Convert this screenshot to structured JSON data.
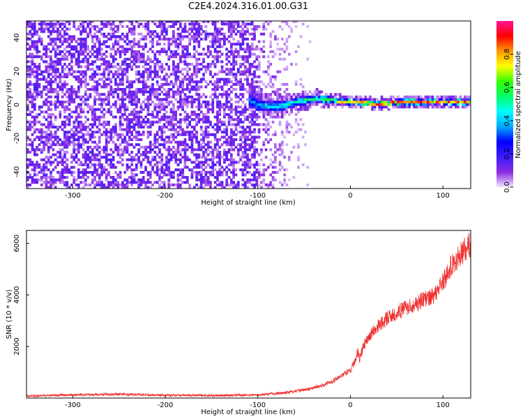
{
  "title": "C2E4.2024.316.01.00.G31",
  "chart_data": [
    {
      "type": "heatmap",
      "xlabel": "Height of straight line (km)",
      "ylabel": "Frequency (Hz)",
      "xlim": [
        -350,
        130
      ],
      "ylim": [
        -50,
        50
      ],
      "xticks": [
        -300,
        -200,
        -100,
        0,
        100
      ],
      "yticks": [
        -40,
        -20,
        0,
        20,
        40
      ],
      "colorbar": {
        "label": "Normalized spectral amplitude",
        "range": [
          0,
          1
        ],
        "ticks": [
          0.0,
          0.2,
          0.4,
          0.6,
          0.8
        ],
        "colormap": [
          "#f2e6ff",
          "#8a2be2",
          "#3c1cff",
          "#0000ff",
          "#00a8ff",
          "#00ffff",
          "#00ff66",
          "#33ff00",
          "#ffff00",
          "#ff9900",
          "#ff0000",
          "#ff1493"
        ]
      },
      "noise_region": {
        "x_range": [
          -350,
          -100
        ],
        "freq_range": [
          -50,
          50
        ],
        "typical_amplitude": 0.12
      },
      "signal_band": [
        {
          "x": -110,
          "center_freq": 2,
          "halfwidth": 6,
          "amplitude": 0.35
        },
        {
          "x": -100,
          "center_freq": -1,
          "halfwidth": 4,
          "amplitude": 0.45
        },
        {
          "x": -80,
          "center_freq": -2,
          "halfwidth": 4,
          "amplitude": 0.5
        },
        {
          "x": -60,
          "center_freq": 1,
          "halfwidth": 3,
          "amplitude": 0.55
        },
        {
          "x": -40,
          "center_freq": 3,
          "halfwidth": 3,
          "amplitude": 0.6
        },
        {
          "x": -20,
          "center_freq": 2,
          "halfwidth": 2,
          "amplitude": 0.75
        },
        {
          "x": 0,
          "center_freq": 1,
          "halfwidth": 2,
          "amplitude": 0.85
        },
        {
          "x": 30,
          "center_freq": 0,
          "halfwidth": 2,
          "amplitude": 0.95
        },
        {
          "x": 60,
          "center_freq": 1,
          "halfwidth": 2,
          "amplitude": 0.95
        },
        {
          "x": 100,
          "center_freq": 1,
          "halfwidth": 2,
          "amplitude": 0.95
        },
        {
          "x": 130,
          "center_freq": 1,
          "halfwidth": 2,
          "amplitude": 0.95
        }
      ]
    },
    {
      "type": "line",
      "xlabel": "Height of straight line (km)",
      "ylabel": "SNR (10 * v/v)",
      "xlim": [
        -350,
        130
      ],
      "ylim": [
        0,
        6500
      ],
      "xticks": [
        -300,
        -200,
        -100,
        0,
        100
      ],
      "yticks": [
        2000,
        4000,
        6000
      ],
      "series": [
        {
          "name": "SNR",
          "color": "#ee3030",
          "x": [
            -350,
            -300,
            -250,
            -200,
            -150,
            -100,
            -80,
            -60,
            -40,
            -30,
            -20,
            -10,
            0,
            5,
            8,
            10,
            13,
            20,
            30,
            40,
            50,
            60,
            70,
            80,
            90,
            100,
            110,
            120,
            130
          ],
          "y": [
            80,
            120,
            150,
            110,
            100,
            120,
            180,
            250,
            400,
            500,
            650,
            850,
            1100,
            1400,
            1800,
            1500,
            1900,
            2400,
            2800,
            3100,
            3300,
            3500,
            3650,
            3800,
            4000,
            4500,
            5200,
            5600,
            6000
          ]
        }
      ]
    }
  ]
}
